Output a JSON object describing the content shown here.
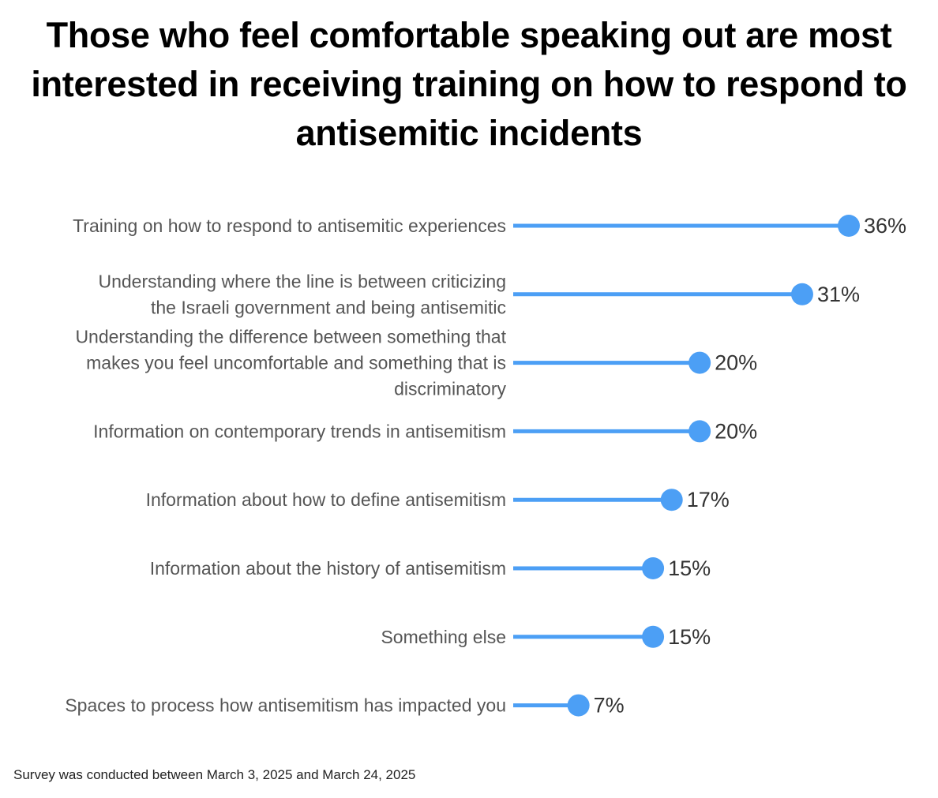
{
  "title": "Those who feel comfortable speaking out are most interested in receiving training on how to respond to antisemitic incidents",
  "footnote": "Survey was conducted between March 3, 2025 and March 24, 2025",
  "colors": {
    "accent": "#4c9ff5",
    "label": "#555555",
    "value": "#333333"
  },
  "chart_data": {
    "type": "lollipop",
    "categories": [
      "Training on how to respond to antisemitic experiences",
      "Understanding where the line is between criticizing the Israeli government and being antisemitic",
      "Understanding the difference between something that makes you feel uncomfortable and something that is discriminatory",
      "Information on contemporary trends in antisemitism",
      "Information about how to define antisemitism",
      "Information about the history of antisemitism",
      "Something else",
      "Spaces to process how antisemitism has impacted you"
    ],
    "category_lines": [
      [
        "Training on how to respond to antisemitic experiences"
      ],
      [
        "Understanding where the line is between criticizing",
        "the Israeli government and being antisemitic"
      ],
      [
        "Understanding the difference between something that",
        "makes you feel uncomfortable and something that is",
        "discriminatory"
      ],
      [
        "Information on contemporary trends in antisemitism"
      ],
      [
        "Information about how to define antisemitism"
      ],
      [
        "Information about the history of antisemitism"
      ],
      [
        "Something else"
      ],
      [
        "Spaces to process how antisemitism has impacted you"
      ]
    ],
    "values": [
      36,
      31,
      20,
      20,
      17,
      15,
      15,
      7
    ],
    "value_labels": [
      "36%",
      "31%",
      "20%",
      "20%",
      "17%",
      "15%",
      "15%",
      "7%"
    ],
    "unit": "%",
    "xlim": [
      0,
      36
    ],
    "legend": "none",
    "grid": false
  }
}
